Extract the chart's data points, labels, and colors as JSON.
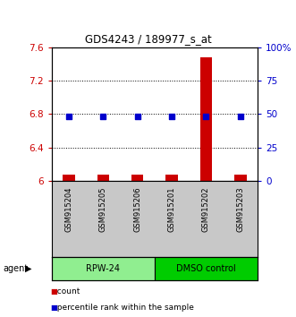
{
  "title": "GDS4243 / 189977_s_at",
  "samples": [
    "GSM915204",
    "GSM915205",
    "GSM915206",
    "GSM915201",
    "GSM915202",
    "GSM915203"
  ],
  "count_values": [
    6.07,
    6.07,
    6.07,
    6.07,
    7.48,
    6.07
  ],
  "percentile_values": [
    6.77,
    6.77,
    6.77,
    6.77,
    6.77,
    6.77
  ],
  "ylim_left": [
    6.0,
    7.6
  ],
  "ylim_right": [
    0,
    100
  ],
  "yticks_left": [
    6.0,
    6.4,
    6.8,
    7.2,
    7.6
  ],
  "yticks_right": [
    0,
    25,
    50,
    75,
    100
  ],
  "ytick_labels_left": [
    "6",
    "6.4",
    "6.8",
    "7.2",
    "7.6"
  ],
  "ytick_labels_right": [
    "0",
    "25",
    "50",
    "75",
    "100%"
  ],
  "groups": [
    {
      "label": "RPW-24",
      "start": 0,
      "end": 3,
      "color": "#90EE90"
    },
    {
      "label": "DMSO control",
      "start": 3,
      "end": 6,
      "color": "#00CC00"
    }
  ],
  "bar_color": "#CC0000",
  "dot_color": "#0000CC",
  "bar_width": 0.35,
  "dot_size": 18,
  "left_tick_color": "#CC0000",
  "right_tick_color": "#0000CC",
  "bg_color": "#ffffff",
  "plot_bg_color": "#ffffff",
  "sample_bg_color": "#C8C8C8",
  "agent_label": "agent",
  "legend_count_label": "count",
  "legend_pct_label": "percentile rank within the sample"
}
